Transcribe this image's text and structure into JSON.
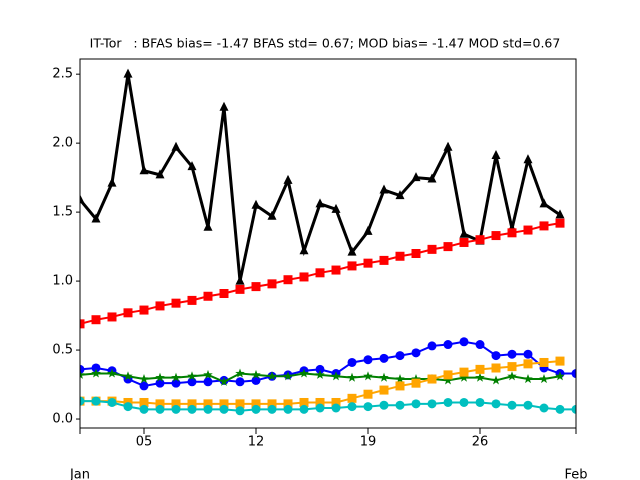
{
  "chart_data": {
    "type": "line",
    "title": "IT-Tor   : BFAS bias= -1.47 BFAS std= 0.67; MOD bias= -1.47 MOD std=0.67",
    "x": [
      1,
      2,
      3,
      4,
      5,
      6,
      7,
      8,
      9,
      10,
      11,
      12,
      13,
      14,
      15,
      16,
      17,
      18,
      19,
      20,
      21,
      22,
      23,
      24,
      25,
      26,
      27,
      28,
      29,
      30,
      31,
      32
    ],
    "xlim": [
      1,
      32
    ],
    "xticks": [
      {
        "value": 5,
        "label": "05"
      },
      {
        "value": 12,
        "label": "12"
      },
      {
        "value": 19,
        "label": "19"
      },
      {
        "value": 26,
        "label": "26"
      }
    ],
    "xticks_month": [
      {
        "value": 1,
        "label": "Jan"
      },
      {
        "value": 32,
        "label": "Feb"
      }
    ],
    "ylim": [
      -0.065,
      2.61
    ],
    "yticks": [
      {
        "value": 0,
        "label": "0.0"
      },
      0.5,
      {
        "value": 1,
        "label": "1.0"
      },
      1.5,
      {
        "value": 2,
        "label": "2.0"
      },
      2.5
    ],
    "grid": false,
    "series": [
      {
        "color": "#000000",
        "marker": "triangle",
        "width": 3,
        "values": [
          1.59,
          1.45,
          1.71,
          2.5,
          1.8,
          1.77,
          1.97,
          1.83,
          1.39,
          2.26,
          1.0,
          1.55,
          1.47,
          1.73,
          1.22,
          1.56,
          1.52,
          1.21,
          1.36,
          1.66,
          1.62,
          1.75,
          1.74,
          1.97,
          1.34,
          1.29,
          1.91,
          1.38,
          1.88,
          1.56,
          1.48,
          null
        ]
      },
      {
        "color": "#ff0000",
        "marker": "square",
        "width": 2,
        "values": [
          0.69,
          0.72,
          0.74,
          0.77,
          0.79,
          0.82,
          0.84,
          0.86,
          0.89,
          0.91,
          0.94,
          0.96,
          0.98,
          1.01,
          1.03,
          1.06,
          1.08,
          1.11,
          1.13,
          1.15,
          1.18,
          1.2,
          1.23,
          1.25,
          1.28,
          1.3,
          1.33,
          1.35,
          1.37,
          1.4,
          1.42,
          null
        ]
      },
      {
        "color": "#0000ff",
        "marker": "circle",
        "width": 2,
        "values": [
          0.36,
          0.37,
          0.35,
          0.29,
          0.24,
          0.26,
          0.26,
          0.27,
          0.27,
          0.28,
          0.27,
          0.28,
          0.31,
          0.32,
          0.35,
          0.36,
          0.33,
          0.41,
          0.43,
          0.44,
          0.46,
          0.48,
          0.53,
          0.54,
          0.56,
          0.54,
          0.46,
          0.47,
          0.47,
          0.37,
          0.33,
          0.33
        ]
      },
      {
        "color": "#008000",
        "marker": "star",
        "width": 2,
        "values": [
          0.32,
          0.33,
          0.33,
          0.31,
          0.29,
          0.3,
          0.3,
          0.31,
          0.32,
          0.27,
          0.33,
          0.32,
          0.31,
          0.31,
          0.33,
          0.32,
          0.31,
          0.3,
          0.31,
          0.3,
          0.29,
          0.29,
          0.29,
          0.28,
          0.3,
          0.3,
          0.28,
          0.31,
          0.29,
          0.29,
          0.31,
          null
        ]
      },
      {
        "color": "#ffa500",
        "marker": "square",
        "width": 2,
        "values": [
          0.13,
          0.13,
          0.13,
          0.12,
          0.12,
          0.11,
          0.11,
          0.11,
          0.11,
          0.11,
          0.11,
          0.11,
          0.11,
          0.11,
          0.12,
          0.12,
          0.12,
          0.15,
          0.18,
          0.21,
          0.24,
          0.26,
          0.29,
          0.32,
          0.34,
          0.36,
          0.37,
          0.38,
          0.4,
          0.41,
          0.42,
          null
        ]
      },
      {
        "color": "#00bfbf",
        "marker": "circle",
        "width": 2,
        "values": [
          0.13,
          0.13,
          0.12,
          0.09,
          0.07,
          0.07,
          0.07,
          0.07,
          0.07,
          0.07,
          0.06,
          0.07,
          0.07,
          0.07,
          0.07,
          0.08,
          0.08,
          0.09,
          0.09,
          0.1,
          0.1,
          0.11,
          0.11,
          0.12,
          0.12,
          0.12,
          0.11,
          0.1,
          0.1,
          0.08,
          0.07,
          0.07
        ]
      }
    ]
  }
}
